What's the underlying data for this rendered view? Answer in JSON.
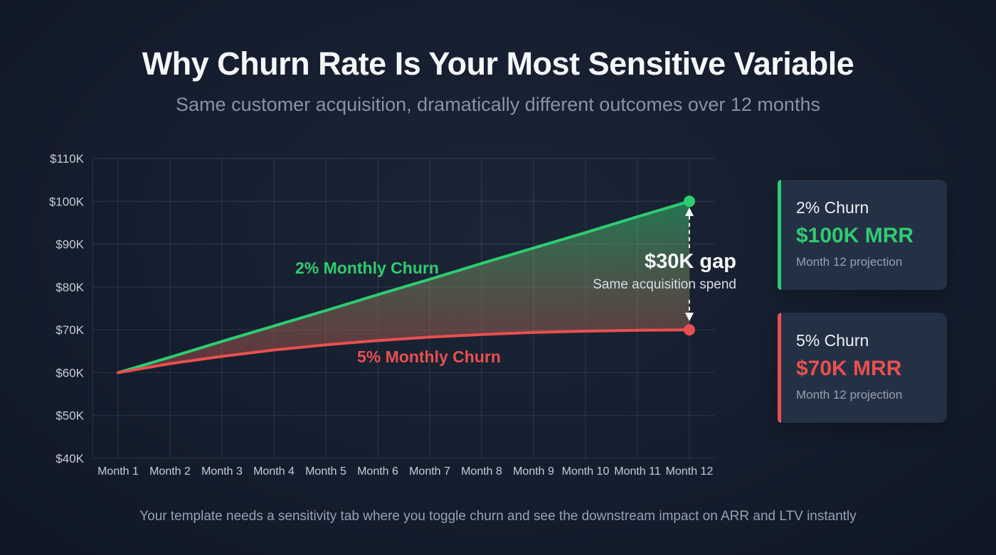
{
  "page": {
    "title": "Why Churn Rate Is Your Most Sensitive Variable",
    "subtitle": "Same customer acquisition, dramatically different outcomes over 12 months",
    "footnote": "Your template needs a sensitivity tab where you toggle churn and see the downstream impact on ARR and LTV instantly"
  },
  "annotations": {
    "green_line_label": "2% Monthly Churn",
    "red_line_label": "5% Monthly Churn",
    "gap_title": "$30K gap",
    "gap_subtitle": "Same acquisition spend"
  },
  "cards": [
    {
      "title": "2% Churn",
      "value": "$100K MRR",
      "caption": "Month 12 projection",
      "accent": "#2ecc71"
    },
    {
      "title": "5% Churn",
      "value": "$70K MRR",
      "caption": "Month 12 projection",
      "accent": "#e8504f"
    }
  ],
  "colors": {
    "background": "#151e2e",
    "card_background": "#243044",
    "grid": "rgba(255,255,255,0.10)",
    "green": "#2ecc71",
    "red": "#e8504f",
    "white": "#f5f8fb",
    "axis_text": "#c7cdd9"
  },
  "chart_data": {
    "type": "line",
    "title": "Why Churn Rate Is Your Most Sensitive Variable",
    "xlabel": "",
    "ylabel": "MRR",
    "x": [
      "Month 1",
      "Month 2",
      "Month 3",
      "Month 4",
      "Month 5",
      "Month 6",
      "Month 7",
      "Month 8",
      "Month 9",
      "Month 10",
      "Month 11",
      "Month 12"
    ],
    "series": [
      {
        "name": "2% Monthly Churn",
        "color": "#2ecc71",
        "values": [
          60,
          63.6,
          67.3,
          70.9,
          74.5,
          78.2,
          81.8,
          85.5,
          89.1,
          92.7,
          96.4,
          100
        ]
      },
      {
        "name": "5% Monthly Churn",
        "color": "#e8504f",
        "values": [
          60,
          62.1,
          63.8,
          65.3,
          66.5,
          67.5,
          68.3,
          68.9,
          69.4,
          69.7,
          69.9,
          70
        ]
      }
    ],
    "units": "$K",
    "ylim": [
      40,
      110
    ],
    "yticks": [
      40,
      50,
      60,
      70,
      80,
      90,
      100,
      110
    ],
    "ytick_labels": [
      "$40K",
      "$50K",
      "$60K",
      "$70K",
      "$80K",
      "$90K",
      "$100K",
      "$110K"
    ],
    "grid": true,
    "legend_position": "inline-labels",
    "gap_annotation": {
      "month_index": 11,
      "from_value": 100,
      "to_value": 70,
      "gap_value": 30,
      "label": "$30K gap",
      "sublabel": "Same acquisition spend"
    }
  }
}
